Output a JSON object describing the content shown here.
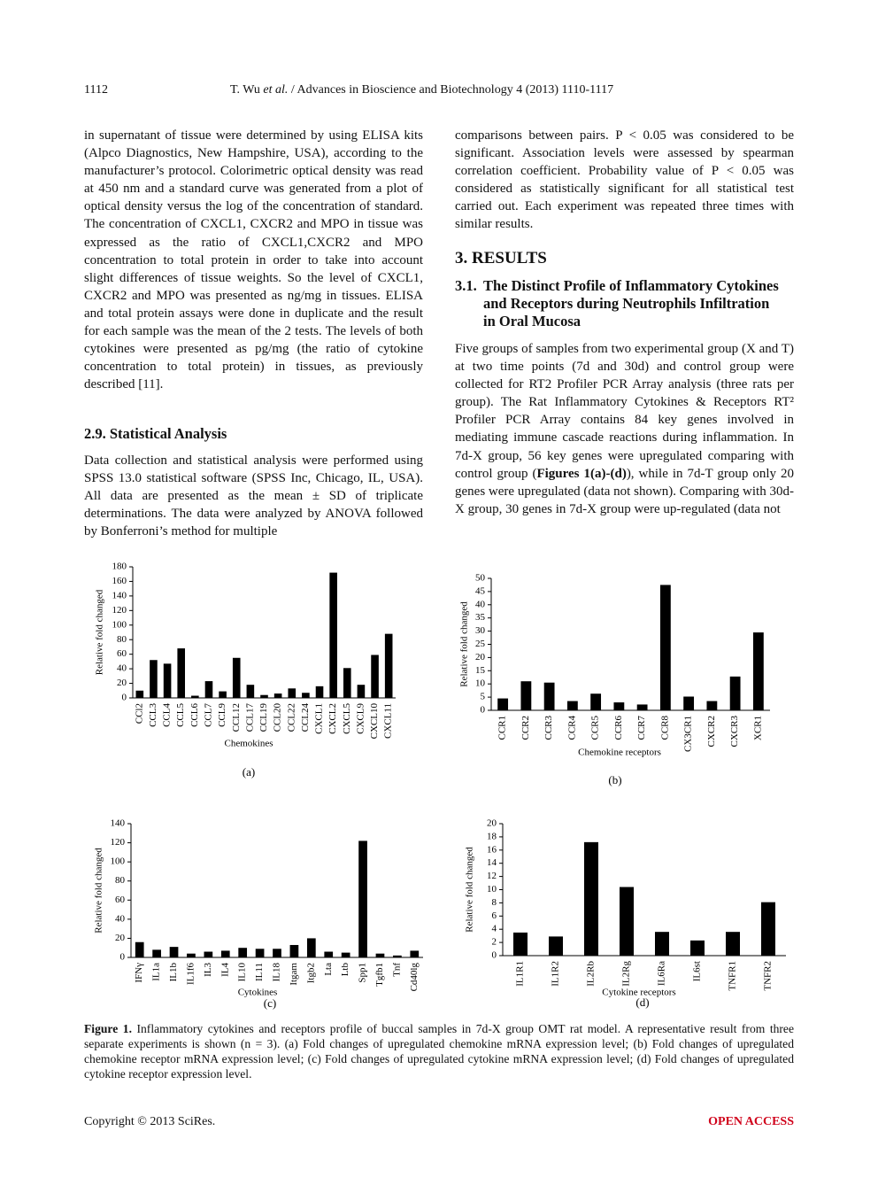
{
  "header": {
    "page_number": "1112",
    "authors": "T. Wu",
    "et_al": "et al.",
    "journal": "/ Advances in Bioscience and Biotechnology 4 (2013) 1110-1117"
  },
  "left_column": {
    "paragraph_1": "in supernatant of tissue were determined by using ELISA kits (Alpco Diagnostics, New Hampshire, USA), according to the manufacturer’s protocol. Colorimetric optical density was read at 450 nm and a standard curve was generated from a plot of optical density versus the log of the concentration of standard. The concentration of CXCL1, CXCR2 and MPO in tissue was expressed as the ratio of CXCL1,CXCR2 and MPO concentration to total protein in order to take into account slight differences of tissue weights. So the level of CXCL1, CXCR2 and MPO was presented as ng/mg in tissues. ELISA and total protein assays were done in duplicate and the result for each sample was the mean of the 2 tests. The levels of both cytokines were presented as pg/mg (the ratio of cytokine concentration to total protein) in tissues, as previously described [11].",
    "heading": "2.9. Statistical Analysis",
    "paragraph_2": "Data collection and statistical analysis were performed using SPSS 13.0 statistical software (SPSS Inc, Chicago, IL, USA). All data are presented as the mean ± SD of triplicate determinations. The data were analyzed by ANOVA followed by Bonferroni’s method for multiple"
  },
  "right_column": {
    "paragraph_1": "comparisons between pairs. P < 0.05 was considered to be significant. Association levels were assessed by spearman correlation coefficient. Probability value of P < 0.05 was considered as statistically significant for all statistical test carried out. Each experiment was repeated three times with similar results.",
    "section_heading": "3. RESULTS",
    "subsection_number": "3.1.",
    "subsection_title": "The Distinct Profile of Inflammatory Cytokines and Receptors during Neutrophils Infiltration in Oral Mucosa",
    "paragraph_2": [
      "Five groups of samples from two experimental group (X and T) at two time points (7d and 30d) and control group were collected for RT2 Profiler PCR Array analysis (three rats per group). The Rat Inflammatory Cytokines & Receptors RT² Profiler PCR Array contains 84 key genes involved in mediating immune cascade reactions during inflammation. In 7d-X group, 56 key genes were upregulated comparing with control group (",
      "Figures 1(a)-(d)",
      "), while in 7d-T group only 20 genes were upregulated (data not shown). Comparing with 30d-X group, 30 genes in 7d-X group were up-regulated (data not"
    ]
  },
  "chart_data": [
    {
      "type": "bar",
      "y_label": "Relative fold changed",
      "x_label": "Chemokines",
      "panel_label": "(a)",
      "color": "#000000",
      "categories": [
        "CCl2",
        "CCL3",
        "CCL4",
        "CCL5",
        "CCL6",
        "CCL7",
        "CCL9",
        "CCL12",
        "CCL17",
        "CCL19",
        "CCL20",
        "CCL22",
        "CCL24",
        "CXCL1",
        "CXCL2",
        "CXCL5",
        "CXCL9",
        "CXCL10",
        "CXCL11"
      ],
      "values": [
        10,
        52,
        47,
        68,
        3,
        23,
        9,
        55,
        18,
        4,
        6,
        13,
        7,
        16,
        172,
        41,
        18,
        59,
        88
      ],
      "ylim": [
        0,
        180
      ],
      "yticks": [
        0,
        20,
        40,
        60,
        80,
        100,
        120,
        140,
        160,
        180
      ]
    },
    {
      "type": "bar",
      "y_label": "Relative fold changed",
      "x_label": "Chemokine receptors",
      "panel_label": "(b)",
      "color": "#000000",
      "categories": [
        "CCR1",
        "CCR2",
        "CCR3",
        "CCR4",
        "CCR5",
        "CCR6",
        "CCR7",
        "CCR8",
        "CX3CR1",
        "CXCR2",
        "CXCR3",
        "XCR1"
      ],
      "values": [
        4.5,
        11,
        10.5,
        3.5,
        6.3,
        3,
        2.2,
        47.5,
        5.2,
        3.5,
        12.8,
        29.5
      ],
      "ylim": [
        0,
        50
      ],
      "yticks": [
        0,
        5,
        10,
        15,
        20,
        25,
        30,
        35,
        40,
        45,
        50
      ]
    },
    {
      "type": "bar",
      "y_label": "Relative fold changed",
      "x_label": "Cytokines",
      "panel_label": "(c)",
      "color": "#000000",
      "categories": [
        "IFNγ",
        "IL1a",
        "IL1b",
        "IL1f6",
        "IL3",
        "IL4",
        "IL10",
        "IL11",
        "IL18",
        "Itgam",
        "Itgb2",
        "Lta",
        "Ltb",
        "Spp1",
        "Tgfb1",
        "Tnf",
        "Cd40lg"
      ],
      "values": [
        16,
        8,
        11,
        4,
        6,
        7,
        10,
        9,
        9,
        13,
        20,
        6,
        5,
        122,
        4,
        2,
        7
      ],
      "ylim": [
        0,
        140
      ],
      "yticks": [
        0,
        20,
        40,
        60,
        80,
        100,
        120,
        140
      ]
    },
    {
      "type": "bar",
      "y_label": "Relative fold changed",
      "x_label": "Cytokine receptors",
      "panel_label": "(d)",
      "color": "#000000",
      "categories": [
        "IL1R1",
        "IL1R2",
        "IL2Rb",
        "IL2Rg",
        "IL6Ra",
        "IL6st",
        "TNFR1",
        "TNFR2"
      ],
      "values": [
        3.5,
        2.9,
        17.2,
        10.4,
        3.6,
        2.3,
        3.6,
        8.1
      ],
      "ylim": [
        0,
        20
      ],
      "yticks": [
        0,
        2,
        4,
        6,
        8,
        10,
        12,
        14,
        16,
        18,
        20
      ]
    }
  ],
  "figure_caption": {
    "label": "Figure 1.",
    "text": "Inflammatory cytokines and receptors profile of buccal samples in 7d-X group OMT rat model. A representative result from three separate experiments is shown (n = 3). (a) Fold changes of upregulated chemokine mRNA expression level; (b) Fold changes of upregulated chemokine receptor mRNA expression level; (c) Fold changes of upregulated cytokine mRNA expression level; (d) Fold changes of upregulated cytokine receptor expression level."
  },
  "footer": {
    "copyright": "Copyright © 2013 SciRes.",
    "access": "OPEN ACCESS"
  }
}
